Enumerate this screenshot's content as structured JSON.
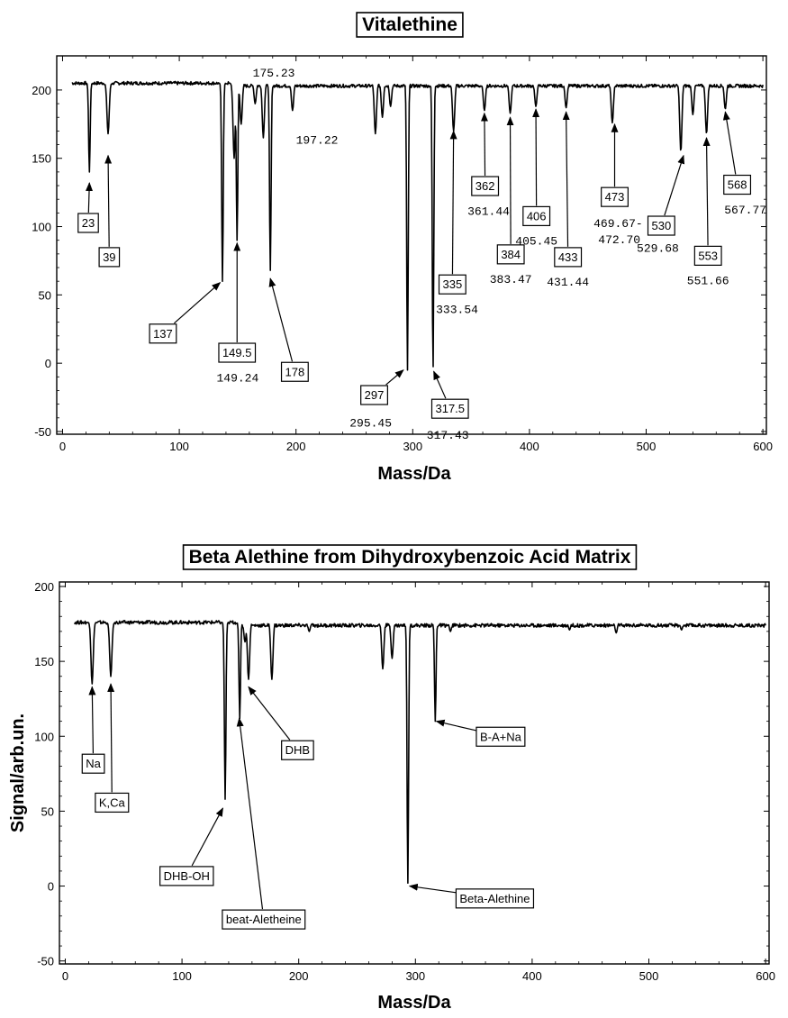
{
  "chart_data": [
    {
      "type": "line",
      "title": "Vitalethine",
      "xlabel": "Mass/Da",
      "ylabel": "",
      "xlim": [
        -5,
        603
      ],
      "ylim": [
        -52,
        225
      ],
      "xticks": [
        "0",
        "100",
        "200",
        "300",
        "400",
        "500",
        "600"
      ],
      "yticks": [
        "-50",
        "0",
        "50",
        "100",
        "150",
        "200"
      ],
      "xtick_values": [
        0,
        100,
        200,
        300,
        400,
        500,
        600
      ],
      "ytick_values": [
        -50,
        0,
        50,
        100,
        150,
        200
      ],
      "baseline": 205,
      "dips": [
        {
          "x": 23,
          "y": 140
        },
        {
          "x": 39,
          "y": 168
        },
        {
          "x": 137,
          "y": 60
        },
        {
          "x": 147,
          "y": 150
        },
        {
          "x": 149.5,
          "y": 90
        },
        {
          "x": 153,
          "y": 175
        },
        {
          "x": 165,
          "y": 190
        },
        {
          "x": 172,
          "y": 165
        },
        {
          "x": 178,
          "y": 68
        },
        {
          "x": 197,
          "y": 185
        },
        {
          "x": 268,
          "y": 168
        },
        {
          "x": 274,
          "y": 180
        },
        {
          "x": 281,
          "y": 188
        },
        {
          "x": 295.5,
          "y": -5
        },
        {
          "x": 317.4,
          "y": -5
        },
        {
          "x": 335,
          "y": 170
        },
        {
          "x": 361.4,
          "y": 185
        },
        {
          "x": 383.5,
          "y": 183
        },
        {
          "x": 405.5,
          "y": 188
        },
        {
          "x": 431.4,
          "y": 187
        },
        {
          "x": 471,
          "y": 176
        },
        {
          "x": 529.7,
          "y": 155
        },
        {
          "x": 540,
          "y": 182
        },
        {
          "x": 551.7,
          "y": 168
        },
        {
          "x": 567.8,
          "y": 186
        }
      ],
      "annotations": [
        {
          "box": "23",
          "val": "",
          "at": [
            23,
            132
          ],
          "bx": 22,
          "by": 103,
          "vx": 0,
          "vy": 0
        },
        {
          "box": "39",
          "val": "",
          "at": [
            39,
            152
          ],
          "bx": 40,
          "by": 78,
          "vx": 0,
          "vy": 0
        },
        {
          "box": "137",
          "val": "",
          "at": [
            135,
            59
          ],
          "bx": 86,
          "by": 22,
          "vx": 0,
          "vy": 0
        },
        {
          "box": "149.5",
          "val": "149.24",
          "at": [
            149.5,
            88
          ],
          "bx": 149.5,
          "by": 8,
          "vx": 150,
          "vy": -10
        },
        {
          "box": "178",
          "val": "",
          "at": [
            178,
            62
          ],
          "bx": 199,
          "by": -6,
          "vx": 0,
          "vy": 0
        },
        {
          "box": "",
          "val": "175.23",
          "at": [
            0,
            0
          ],
          "bx": 0,
          "by": 0,
          "vx": 181,
          "vy": 213
        },
        {
          "box": "",
          "val": "197.22",
          "at": [
            0,
            0
          ],
          "bx": 0,
          "by": 0,
          "vx": 218,
          "vy": 164
        },
        {
          "box": "297",
          "val": "295.45",
          "at": [
            292,
            -5
          ],
          "bx": 267,
          "by": -23,
          "vx": 264,
          "vy": -43
        },
        {
          "box": "317.5",
          "val": "317.43",
          "at": [
            318,
            -6
          ],
          "bx": 332,
          "by": -33,
          "vx": 330,
          "vy": -52
        },
        {
          "box": "335",
          "val": "333.54",
          "at": [
            335,
            170
          ],
          "bx": 334,
          "by": 58,
          "vx": 338,
          "vy": 40
        },
        {
          "box": "362",
          "val": "361.44",
          "at": [
            361.4,
            183
          ],
          "bx": 362,
          "by": 130,
          "vx": 365,
          "vy": 112
        },
        {
          "box": "384",
          "val": "383.47",
          "at": [
            383.5,
            180
          ],
          "bx": 384,
          "by": 80,
          "vx": 384,
          "vy": 62
        },
        {
          "box": "406",
          "val": "405.45",
          "at": [
            405.5,
            186
          ],
          "bx": 406,
          "by": 108,
          "vx": 406,
          "vy": 90
        },
        {
          "box": "433",
          "val": "431.44",
          "at": [
            431.4,
            184
          ],
          "bx": 433,
          "by": 78,
          "vx": 433,
          "vy": 60
        },
        {
          "box": "473",
          "val": "469.67-",
          "at": [
            473,
            175
          ],
          "bx": 473,
          "by": 122,
          "vx": 476,
          "vy": 103
        },
        {
          "box": "",
          "val": "472.70",
          "at": [
            0,
            0
          ],
          "bx": 0,
          "by": 0,
          "vx": 477,
          "vy": 91
        },
        {
          "box": "530",
          "val": "529.68",
          "at": [
            532,
            152
          ],
          "bx": 513,
          "by": 101,
          "vx": 510,
          "vy": 85
        },
        {
          "box": "553",
          "val": "551.66",
          "at": [
            551.7,
            165
          ],
          "bx": 553,
          "by": 79,
          "vx": 553,
          "vy": 61
        },
        {
          "box": "568",
          "val": "567.77",
          "at": [
            567.8,
            184
          ],
          "bx": 578,
          "by": 131,
          "vx": 585,
          "vy": 113
        }
      ]
    },
    {
      "type": "line",
      "title": "Beta Alethine from Dihydroxybenzoic Acid Matrix",
      "xlabel": "Mass/Da",
      "ylabel": "Signal/arb.un.",
      "xlim": [
        -5,
        603
      ],
      "ylim": [
        -52,
        203
      ],
      "xticks": [
        "0",
        "100",
        "200",
        "300",
        "400",
        "500",
        "600"
      ],
      "yticks": [
        "-50",
        "0",
        "50",
        "100",
        "150",
        "200"
      ],
      "xtick_values": [
        0,
        100,
        200,
        300,
        400,
        500,
        600
      ],
      "ytick_values": [
        -50,
        0,
        50,
        100,
        150,
        200
      ],
      "baseline": 176,
      "dips": [
        {
          "x": 23,
          "y": 135
        },
        {
          "x": 39,
          "y": 140
        },
        {
          "x": 137,
          "y": 58
        },
        {
          "x": 149.5,
          "y": 112
        },
        {
          "x": 154,
          "y": 163
        },
        {
          "x": 157,
          "y": 138
        },
        {
          "x": 177,
          "y": 138
        },
        {
          "x": 209,
          "y": 170
        },
        {
          "x": 272,
          "y": 145
        },
        {
          "x": 280,
          "y": 152
        },
        {
          "x": 293.5,
          "y": 2
        },
        {
          "x": 317,
          "y": 110
        },
        {
          "x": 330,
          "y": 170
        },
        {
          "x": 432,
          "y": 171
        },
        {
          "x": 472,
          "y": 169
        },
        {
          "x": 528,
          "y": 171
        }
      ],
      "annotations": [
        {
          "box": "Na",
          "val": "",
          "at": [
            23,
            133
          ],
          "bx": 24,
          "by": 82,
          "vx": 0,
          "vy": 0
        },
        {
          "box": "K,Ca",
          "val": "",
          "at": [
            39,
            135
          ],
          "bx": 40,
          "by": 56,
          "vx": 0,
          "vy": 0
        },
        {
          "box": "DHB-OH",
          "val": "",
          "at": [
            135,
            52
          ],
          "bx": 104,
          "by": 7,
          "vx": 0,
          "vy": 0
        },
        {
          "box": "beat-Aletheine",
          "val": "",
          "at": [
            149,
            112
          ],
          "bx": 170,
          "by": -22,
          "vx": 0,
          "vy": 0
        },
        {
          "box": "DHB",
          "val": "",
          "at": [
            157,
            133
          ],
          "bx": 199,
          "by": 91,
          "vx": 0,
          "vy": 0
        },
        {
          "box": "B-A+Na",
          "val": "",
          "at": [
            318,
            110
          ],
          "bx": 373,
          "by": 100,
          "vx": 0,
          "vy": 0
        },
        {
          "box": "Beta-Alethine",
          "val": "",
          "at": [
            295,
            0
          ],
          "bx": 368,
          "by": -8,
          "vx": 0,
          "vy": 0
        }
      ]
    }
  ]
}
